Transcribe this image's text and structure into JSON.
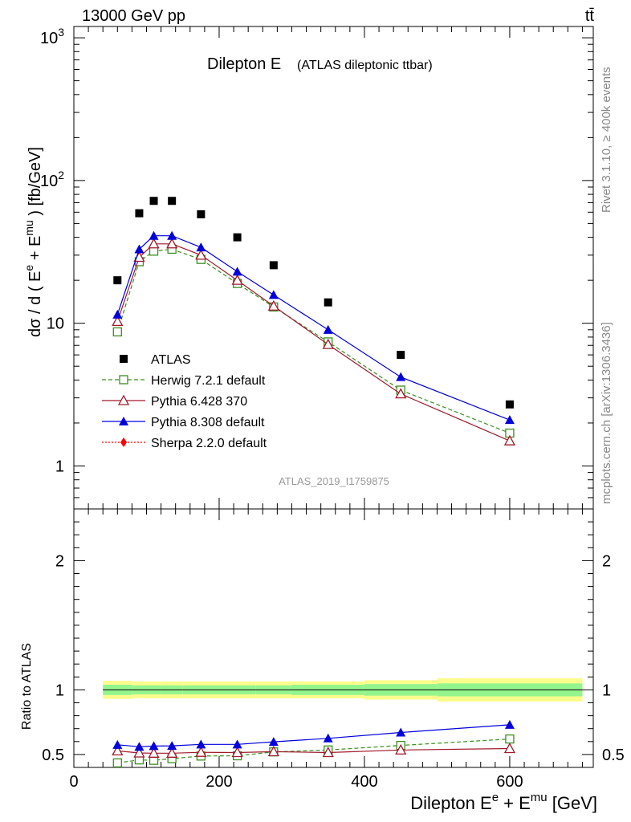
{
  "header": {
    "energy": "13000 GeV pp",
    "process": "tt̄"
  },
  "side": {
    "rivet": "Rivet 3.1.10, ≥ 400k events",
    "mcplots": "mcplots.cern.ch [arXiv:1306.3436]"
  },
  "chart_data": [
    {
      "type": "scatter",
      "title_main": "Dilepton E",
      "title_sub": "(ATLAS dileptonic ttbar)",
      "ylabel": "dσ / d ( E^e + E^mu ) [fb/GeV]",
      "yscale": "log",
      "ylim": [
        0.5,
        1200
      ],
      "xlim": [
        0,
        715
      ],
      "yticks": [
        1,
        10,
        100,
        1000
      ],
      "ytick_labels": [
        "1",
        "10",
        "10^2",
        "10^3"
      ],
      "watermark": "ATLAS_2019_I1759875",
      "legend_placement": "center-left",
      "series": [
        {
          "name": "ATLAS",
          "color": "#000000",
          "marker": "square-filled",
          "line": "none",
          "x": [
            60,
            90,
            110,
            135,
            175,
            225,
            275,
            350,
            450,
            600
          ],
          "y": [
            20,
            59,
            72,
            72,
            58,
            40,
            25.5,
            14,
            6,
            2.7
          ]
        },
        {
          "name": "Herwig 7.2.1 default",
          "color": "#3a8f1e",
          "marker": "square-open",
          "line": "dashed",
          "x": [
            60,
            90,
            110,
            135,
            175,
            225,
            275,
            350,
            450,
            600
          ],
          "y": [
            8.7,
            27,
            32,
            33,
            28,
            19,
            13,
            7.4,
            3.4,
            1.7
          ]
        },
        {
          "name": "Pythia 6.428 370",
          "color": "#a0192b",
          "marker": "triangle-open",
          "line": "solid",
          "x": [
            60,
            90,
            110,
            135,
            175,
            225,
            275,
            350,
            450,
            600
          ],
          "y": [
            10.3,
            29,
            36,
            36,
            30,
            20,
            13.2,
            7.1,
            3.2,
            1.5
          ]
        },
        {
          "name": "Pythia 8.308 default",
          "color": "#0000dd",
          "marker": "triangle-filled",
          "line": "solid",
          "x": [
            60,
            90,
            110,
            135,
            175,
            225,
            275,
            350,
            450,
            600
          ],
          "y": [
            11.5,
            33,
            41,
            41,
            34,
            23,
            15.8,
            9,
            4.2,
            2.1
          ]
        },
        {
          "name": "Sherpa 2.2.0 default",
          "color": "#ff0000",
          "marker": "diamond-filled",
          "line": "dotted",
          "x": [],
          "y": []
        }
      ]
    },
    {
      "type": "scatter",
      "xlabel": "Dilepton E^e + E^mu [GeV]",
      "ylabel": "Ratio to ATLAS",
      "ylim": [
        0.4,
        2.4
      ],
      "xlim": [
        0,
        715
      ],
      "xticks": [
        0,
        200,
        400,
        600
      ],
      "yticks": [
        0.5,
        1,
        2
      ],
      "ytick_labels": [
        "0.5",
        "1",
        "2"
      ],
      "band_edges": [
        40,
        80,
        100,
        120,
        150,
        200,
        250,
        300,
        400,
        500,
        700
      ],
      "band_yellow_half": [
        0.07,
        0.065,
        0.065,
        0.065,
        0.065,
        0.065,
        0.065,
        0.065,
        0.075,
        0.09
      ],
      "band_green_half": [
        0.04,
        0.035,
        0.035,
        0.035,
        0.035,
        0.035,
        0.035,
        0.04,
        0.045,
        0.05
      ],
      "series": [
        {
          "name": "Herwig 7.2.1 default",
          "color": "#3a8f1e",
          "marker": "square-open",
          "line": "dashed",
          "x": [
            60,
            90,
            110,
            135,
            175,
            225,
            275,
            350,
            450,
            600
          ],
          "y": [
            0.435,
            0.458,
            0.455,
            0.468,
            0.488,
            0.49,
            0.52,
            0.535,
            0.57,
            0.62
          ]
        },
        {
          "name": "Pythia 6.428 370",
          "color": "#a0192b",
          "marker": "triangle-open",
          "line": "solid",
          "x": [
            60,
            90,
            110,
            135,
            175,
            225,
            275,
            350,
            450,
            600
          ],
          "y": [
            0.528,
            0.512,
            0.51,
            0.51,
            0.517,
            0.515,
            0.522,
            0.515,
            0.535,
            0.546
          ]
        },
        {
          "name": "Pythia 8.308 default",
          "color": "#0000dd",
          "marker": "triangle-filled",
          "line": "solid",
          "x": [
            60,
            90,
            110,
            135,
            175,
            225,
            275,
            350,
            450,
            600
          ],
          "y": [
            0.575,
            0.56,
            0.565,
            0.567,
            0.578,
            0.578,
            0.598,
            0.625,
            0.67,
            0.73
          ]
        }
      ]
    }
  ]
}
